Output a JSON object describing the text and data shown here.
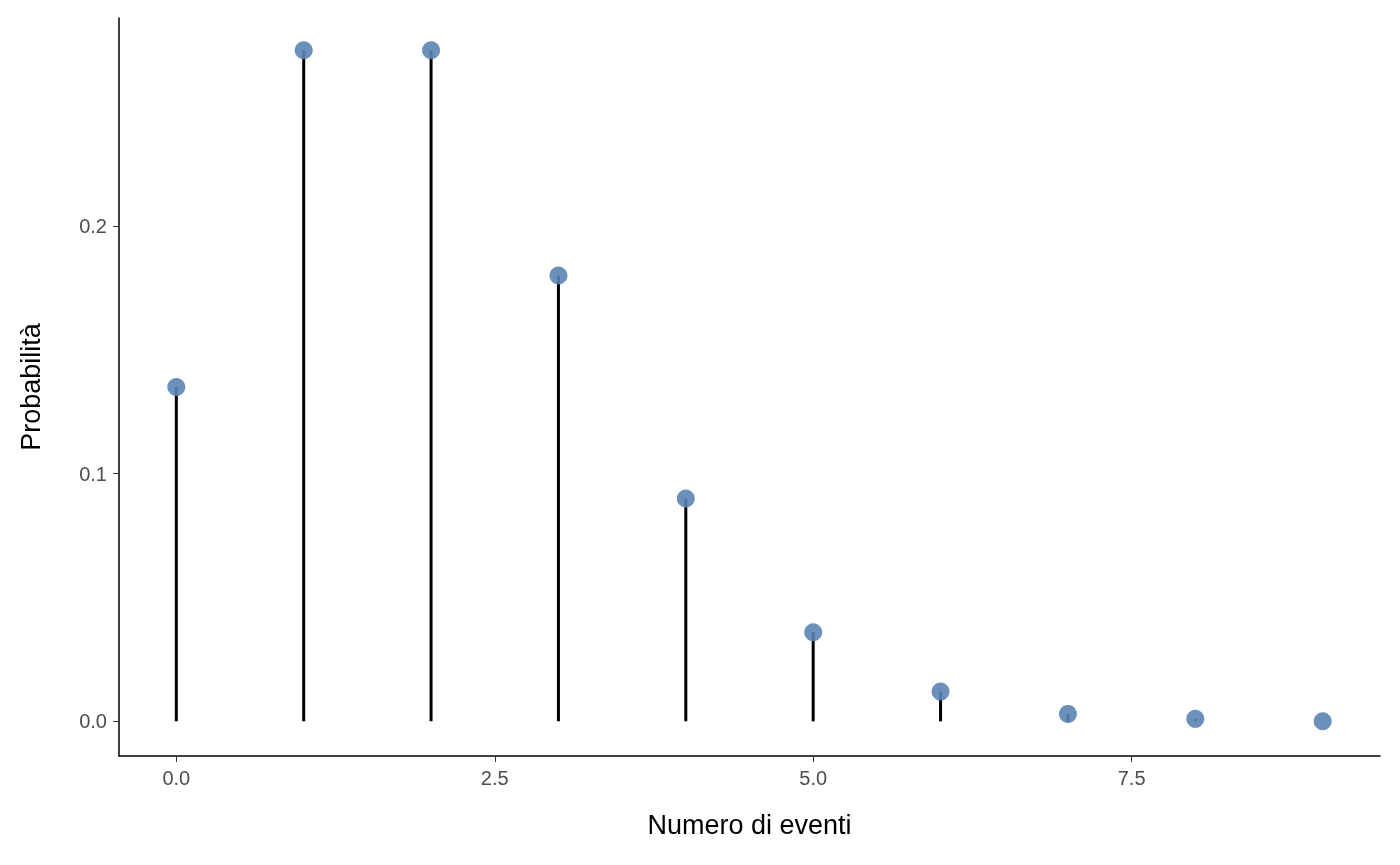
{
  "chart_data": {
    "type": "lollipop",
    "xlabel": "Numero di eventi",
    "ylabel": "Probabilità",
    "x": [
      0,
      1,
      2,
      3,
      4,
      5,
      6,
      7,
      8,
      9
    ],
    "series": [
      {
        "color": "#5b84b1",
        "values": [
          0.135,
          0.271,
          0.271,
          0.18,
          0.09,
          0.036,
          0.012,
          0.003,
          0.001,
          0.0
        ]
      }
    ],
    "marker": "circle",
    "xlim": [
      -0.45,
      9.45
    ],
    "xticks": [
      {
        "value": 0,
        "label": "0.0"
      },
      {
        "value": 2.5,
        "label": "2.5"
      },
      {
        "value": 5,
        "label": "5.0"
      },
      {
        "value": 7.5,
        "label": "7.5"
      }
    ],
    "ylim": [
      -0.014,
      0.284
    ],
    "yticks": [
      {
        "value": 0,
        "label": "0.0"
      },
      {
        "value": 0.1,
        "label": "0.1"
      },
      {
        "value": 0.2,
        "label": "0.2"
      }
    ]
  }
}
